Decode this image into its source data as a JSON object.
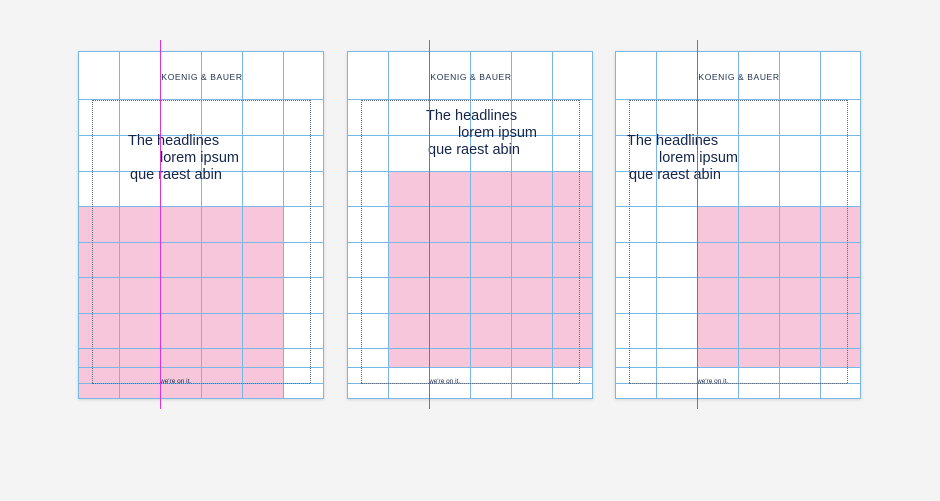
{
  "colors": {
    "background": "#f4f4f4",
    "page": "#ffffff",
    "grid_line": "#79b7e6",
    "image_area": "#f7c6da",
    "guide_line": "#e033d6",
    "text": "#14254a"
  },
  "layouts": [
    {
      "logo": "KOENIG & BAUER",
      "headline": [
        "The headlines",
        "lorem ipsum",
        "que raest abin"
      ],
      "tagline": "we're on it."
    },
    {
      "logo": "KOENIG & BAUER",
      "headline": [
        "The headlines",
        "lorem ipsum",
        "que raest abin"
      ],
      "tagline": "we're on it."
    },
    {
      "logo": "KOENIG & BAUER",
      "headline": [
        "The headlines",
        "lorem ipsum",
        "que raest abin"
      ],
      "tagline": "we're on it."
    }
  ]
}
